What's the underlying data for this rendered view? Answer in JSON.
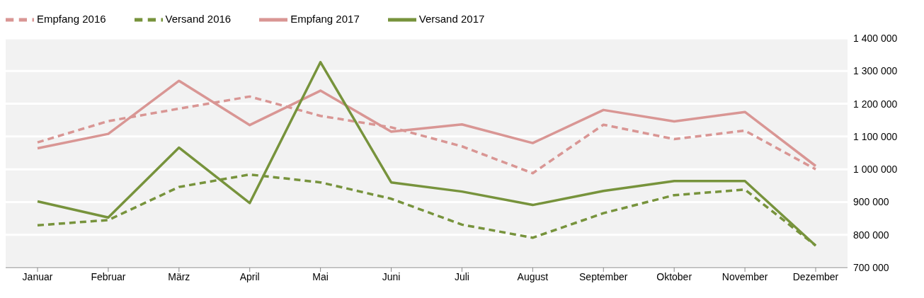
{
  "chart_data": {
    "type": "line",
    "categories": [
      "Januar",
      "Februar",
      "März",
      "April",
      "Mai",
      "Juni",
      "Juli",
      "August",
      "September",
      "Oktober",
      "November",
      "Dezember"
    ],
    "series": [
      {
        "name": "Empfang 2016",
        "color": "#d99694",
        "line_style": "dashed",
        "values": [
          1082000,
          1147000,
          1185000,
          1222000,
          1163000,
          1128000,
          1070000,
          988000,
          1136000,
          1092000,
          1118000,
          1000000
        ]
      },
      {
        "name": "Versand 2016",
        "color": "#77933c",
        "line_style": "dashed",
        "values": [
          829000,
          845000,
          946000,
          984000,
          960000,
          910000,
          831000,
          791000,
          866000,
          921000,
          938000,
          767000
        ]
      },
      {
        "name": "Empfang 2017",
        "color": "#d99694",
        "line_style": "solid",
        "values": [
          1064000,
          1108000,
          1270000,
          1135000,
          1240000,
          1115000,
          1137000,
          1080000,
          1181000,
          1146000,
          1175000,
          1010000
        ]
      },
      {
        "name": "Versand 2017",
        "color": "#77933c",
        "line_style": "solid",
        "values": [
          902000,
          853000,
          1066000,
          897000,
          1327000,
          960000,
          932000,
          891000,
          934000,
          964000,
          964000,
          767000
        ]
      }
    ],
    "ylim": [
      700000,
      1400000
    ],
    "yticks": [
      {
        "value": 700000,
        "label": "700 000"
      },
      {
        "value": 800000,
        "label": "800 000"
      },
      {
        "value": 900000,
        "label": "900 000"
      },
      {
        "value": 1000000,
        "label": "1 000 000"
      },
      {
        "value": 1100000,
        "label": "1 100 000"
      },
      {
        "value": 1200000,
        "label": "1 200 000"
      },
      {
        "value": 1300000,
        "label": "1 300 000"
      },
      {
        "value": 1400000,
        "label": "1 400 000"
      }
    ],
    "grid": "y",
    "legend": "top left",
    "marker": "none"
  }
}
